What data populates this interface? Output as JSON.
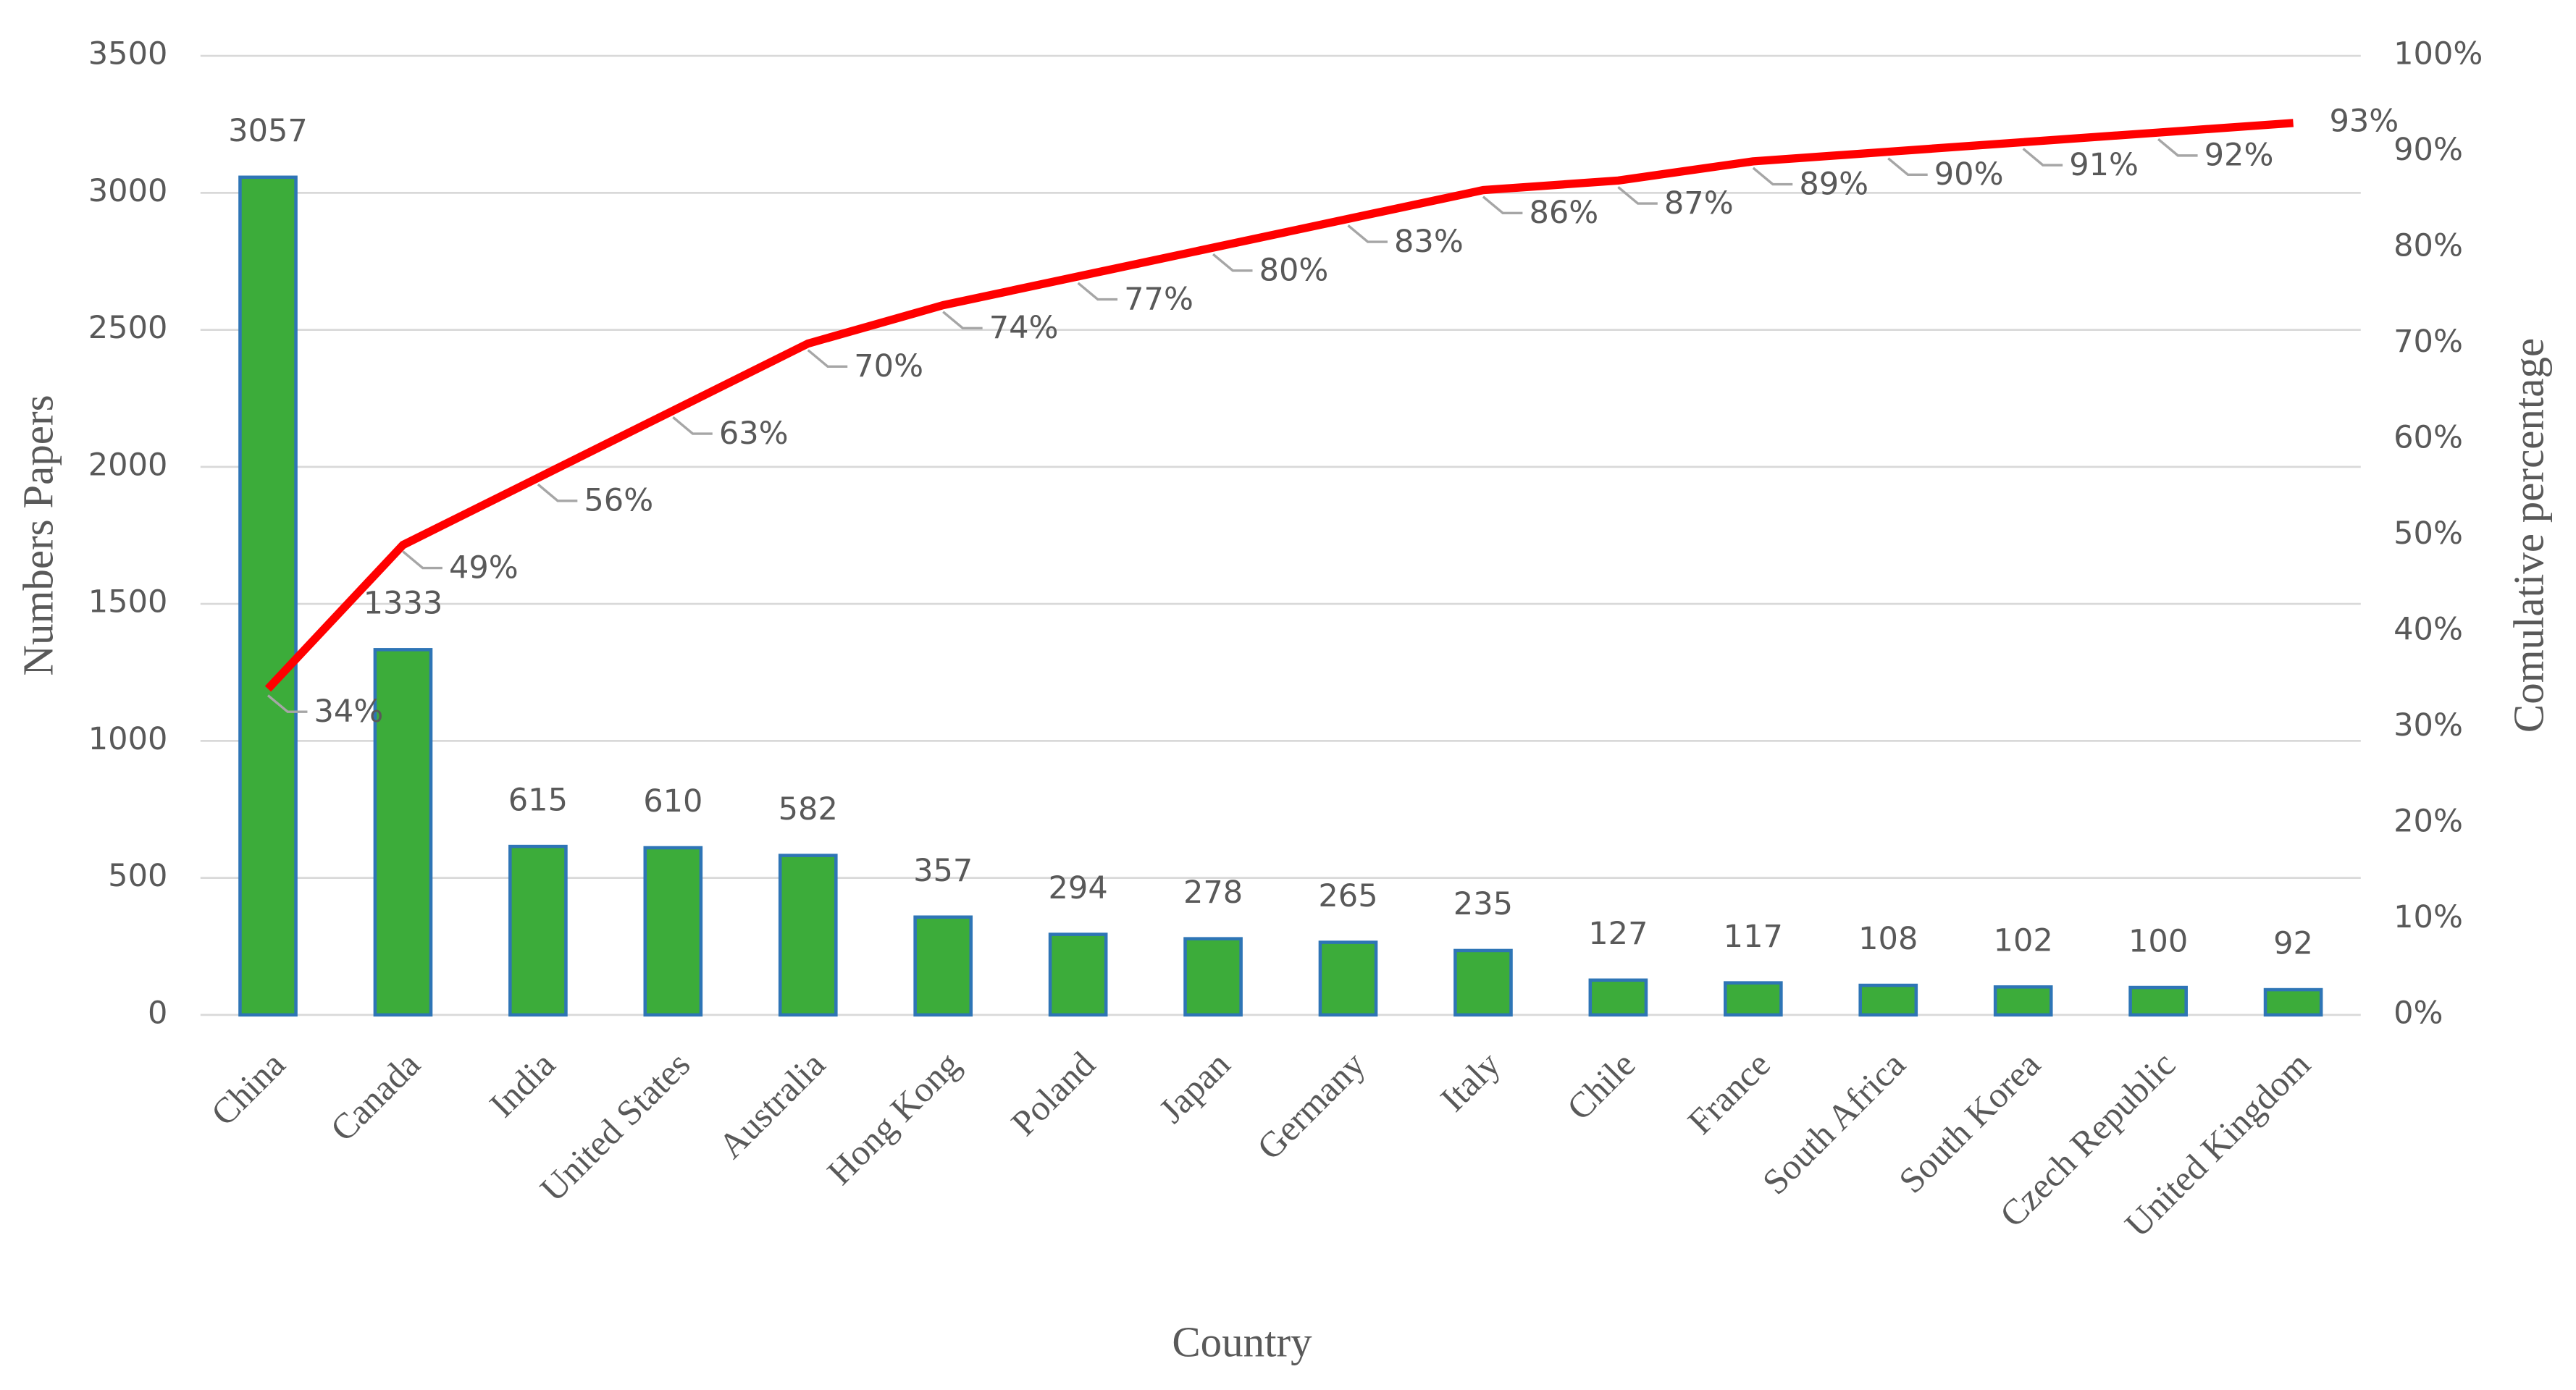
{
  "chart_data": {
    "type": "bar",
    "categories": [
      "China",
      "Canada",
      "India",
      "United States",
      "Australia",
      "Hong Kong",
      "Poland",
      "Japan",
      "Germany",
      "Italy",
      "Chile",
      "France",
      "South Africa",
      "South Korea",
      "Czech Republic",
      "United Kingdom"
    ],
    "series": [
      {
        "type": "bar",
        "color": "#3cac3a",
        "edge": "#2e75b6",
        "values": [
          3057,
          1333,
          615,
          610,
          582,
          357,
          294,
          278,
          265,
          235,
          127,
          117,
          108,
          102,
          100,
          92
        ]
      },
      {
        "type": "line",
        "color": "#ff0000",
        "axis": "y2",
        "values": [
          34,
          49,
          56,
          63,
          70,
          74,
          77,
          80,
          83,
          86,
          87,
          89,
          90,
          91,
          92,
          93
        ],
        "value_labels": [
          "34%",
          "49%",
          "56%",
          "63%",
          "70%",
          "74%",
          "77%",
          "80%",
          "83%",
          "86%",
          "87%",
          "89%",
          "90%",
          "91%",
          "92%",
          "93%"
        ]
      }
    ],
    "x_label": "Country",
    "y_label": "Numbers Papers",
    "y2_label": "Comulative percentage",
    "ylim": [
      0,
      3500
    ],
    "yticks": [
      0,
      500,
      1000,
      1500,
      2000,
      2500,
      3000,
      3500
    ],
    "y2lim": [
      0,
      100
    ],
    "y2ticks": [
      {
        "value": 0,
        "label": "0%"
      },
      {
        "value": 10,
        "label": "10%"
      },
      {
        "value": 20,
        "label": "20%"
      },
      {
        "value": 30,
        "label": "30%"
      },
      {
        "value": 40,
        "label": "40%"
      },
      {
        "value": 50,
        "label": "50%"
      },
      {
        "value": 60,
        "label": "60%"
      },
      {
        "value": 70,
        "label": "70%"
      },
      {
        "value": 80,
        "label": "80%"
      },
      {
        "value": 90,
        "label": "90%"
      },
      {
        "value": 100,
        "label": "100%"
      }
    ],
    "grid": true
  }
}
